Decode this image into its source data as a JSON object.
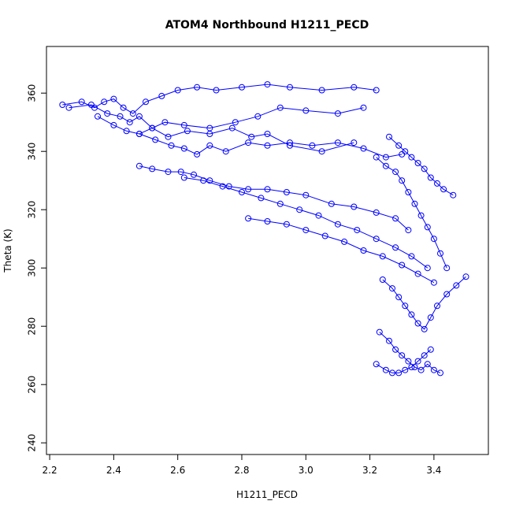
{
  "chart_data": {
    "type": "line",
    "title": "ATOM4 Northbound H1211_PECD",
    "xlabel": "H1211_PECD",
    "ylabel": "Theta (K)",
    "xlim": [
      2.19,
      3.57
    ],
    "ylim": [
      236,
      376
    ],
    "x_ticks": [
      2.2,
      2.4,
      2.6,
      2.8,
      3.0,
      3.2,
      3.4
    ],
    "x_tick_labels": [
      "2.2",
      "2.4",
      "2.6",
      "2.8",
      "3.0",
      "3.2",
      "3.4"
    ],
    "y_ticks": [
      240,
      260,
      280,
      300,
      320,
      340,
      360
    ],
    "y_tick_labels": [
      "240",
      "260",
      "280",
      "300",
      "320",
      "340",
      "360"
    ],
    "grid": false,
    "legend": "none",
    "marker": "open-circle",
    "color": "#0000ff",
    "series": [
      {
        "x": [
          2.24,
          2.3,
          2.34,
          2.37,
          2.4,
          2.43,
          2.46,
          2.5,
          2.55,
          2.6,
          2.66,
          2.72,
          2.8,
          2.88,
          2.95,
          3.05,
          3.15,
          3.22
        ],
        "y": [
          356,
          357,
          355,
          357,
          358,
          355,
          353,
          357,
          359,
          361,
          362,
          361,
          362,
          363,
          362,
          361,
          362,
          361
        ]
      },
      {
        "x": [
          2.26,
          2.33,
          2.38,
          2.42,
          2.45,
          2.48,
          2.52,
          2.56,
          2.62,
          2.7,
          2.78,
          2.85,
          2.92,
          3.0,
          3.1,
          3.18
        ],
        "y": [
          355,
          356,
          353,
          352,
          350,
          352,
          348,
          350,
          349,
          348,
          350,
          352,
          355,
          354,
          353,
          355
        ]
      },
      {
        "x": [
          2.35,
          2.4,
          2.44,
          2.48,
          2.52,
          2.57,
          2.63,
          2.7,
          2.77,
          2.83,
          2.88,
          2.95,
          3.05,
          3.15
        ],
        "y": [
          352,
          349,
          347,
          346,
          348,
          345,
          347,
          346,
          348,
          345,
          346,
          342,
          340,
          343
        ]
      },
      {
        "x": [
          2.48,
          2.53,
          2.58,
          2.62,
          2.66,
          2.7,
          2.75,
          2.82,
          2.88,
          2.95,
          3.02,
          3.1,
          3.18,
          3.25,
          3.3
        ],
        "y": [
          346,
          344,
          342,
          341,
          339,
          342,
          340,
          343,
          342,
          343,
          342,
          343,
          341,
          338,
          339
        ]
      },
      {
        "x": [
          2.48,
          2.52,
          2.57,
          2.61,
          2.65,
          2.7,
          2.76,
          2.82,
          2.88,
          2.94,
          3.0,
          3.08,
          3.15,
          3.22,
          3.28,
          3.32
        ],
        "y": [
          335,
          334,
          333,
          333,
          332,
          330,
          328,
          327,
          327,
          326,
          325,
          322,
          321,
          319,
          317,
          313
        ]
      },
      {
        "x": [
          2.62,
          2.68,
          2.74,
          2.8,
          2.86,
          2.92,
          2.98,
          3.04,
          3.1,
          3.16,
          3.22,
          3.28,
          3.33,
          3.38
        ],
        "y": [
          331,
          330,
          328,
          326,
          324,
          322,
          320,
          318,
          315,
          313,
          310,
          307,
          304,
          300
        ]
      },
      {
        "x": [
          2.82,
          2.88,
          2.94,
          3.0,
          3.06,
          3.12,
          3.18,
          3.24,
          3.3,
          3.35,
          3.4
        ],
        "y": [
          317,
          316,
          315,
          313,
          311,
          309,
          306,
          304,
          301,
          298,
          295
        ]
      },
      {
        "x": [
          3.22,
          3.25,
          3.28,
          3.3,
          3.32,
          3.34,
          3.36,
          3.38,
          3.4,
          3.42,
          3.44
        ],
        "y": [
          338,
          335,
          333,
          330,
          326,
          322,
          318,
          314,
          310,
          305,
          300
        ]
      },
      {
        "x": [
          3.26,
          3.29,
          3.31,
          3.33,
          3.35,
          3.37,
          3.39,
          3.41,
          3.43,
          3.46
        ],
        "y": [
          345,
          342,
          340,
          338,
          336,
          334,
          331,
          329,
          327,
          325
        ]
      },
      {
        "x": [
          3.24,
          3.27,
          3.29,
          3.31,
          3.33,
          3.35,
          3.37,
          3.39,
          3.41,
          3.44,
          3.47,
          3.5
        ],
        "y": [
          296,
          293,
          290,
          287,
          284,
          281,
          279,
          283,
          287,
          291,
          294,
          297
        ]
      },
      {
        "x": [
          3.23,
          3.26,
          3.28,
          3.3,
          3.32,
          3.34,
          3.36,
          3.38,
          3.4,
          3.42
        ],
        "y": [
          278,
          275,
          272,
          270,
          268,
          266,
          265,
          267,
          265,
          264
        ]
      },
      {
        "x": [
          3.22,
          3.25,
          3.27,
          3.29,
          3.31,
          3.33,
          3.35,
          3.37,
          3.39
        ],
        "y": [
          267,
          265,
          264,
          264,
          265,
          266,
          268,
          270,
          272
        ]
      }
    ]
  }
}
